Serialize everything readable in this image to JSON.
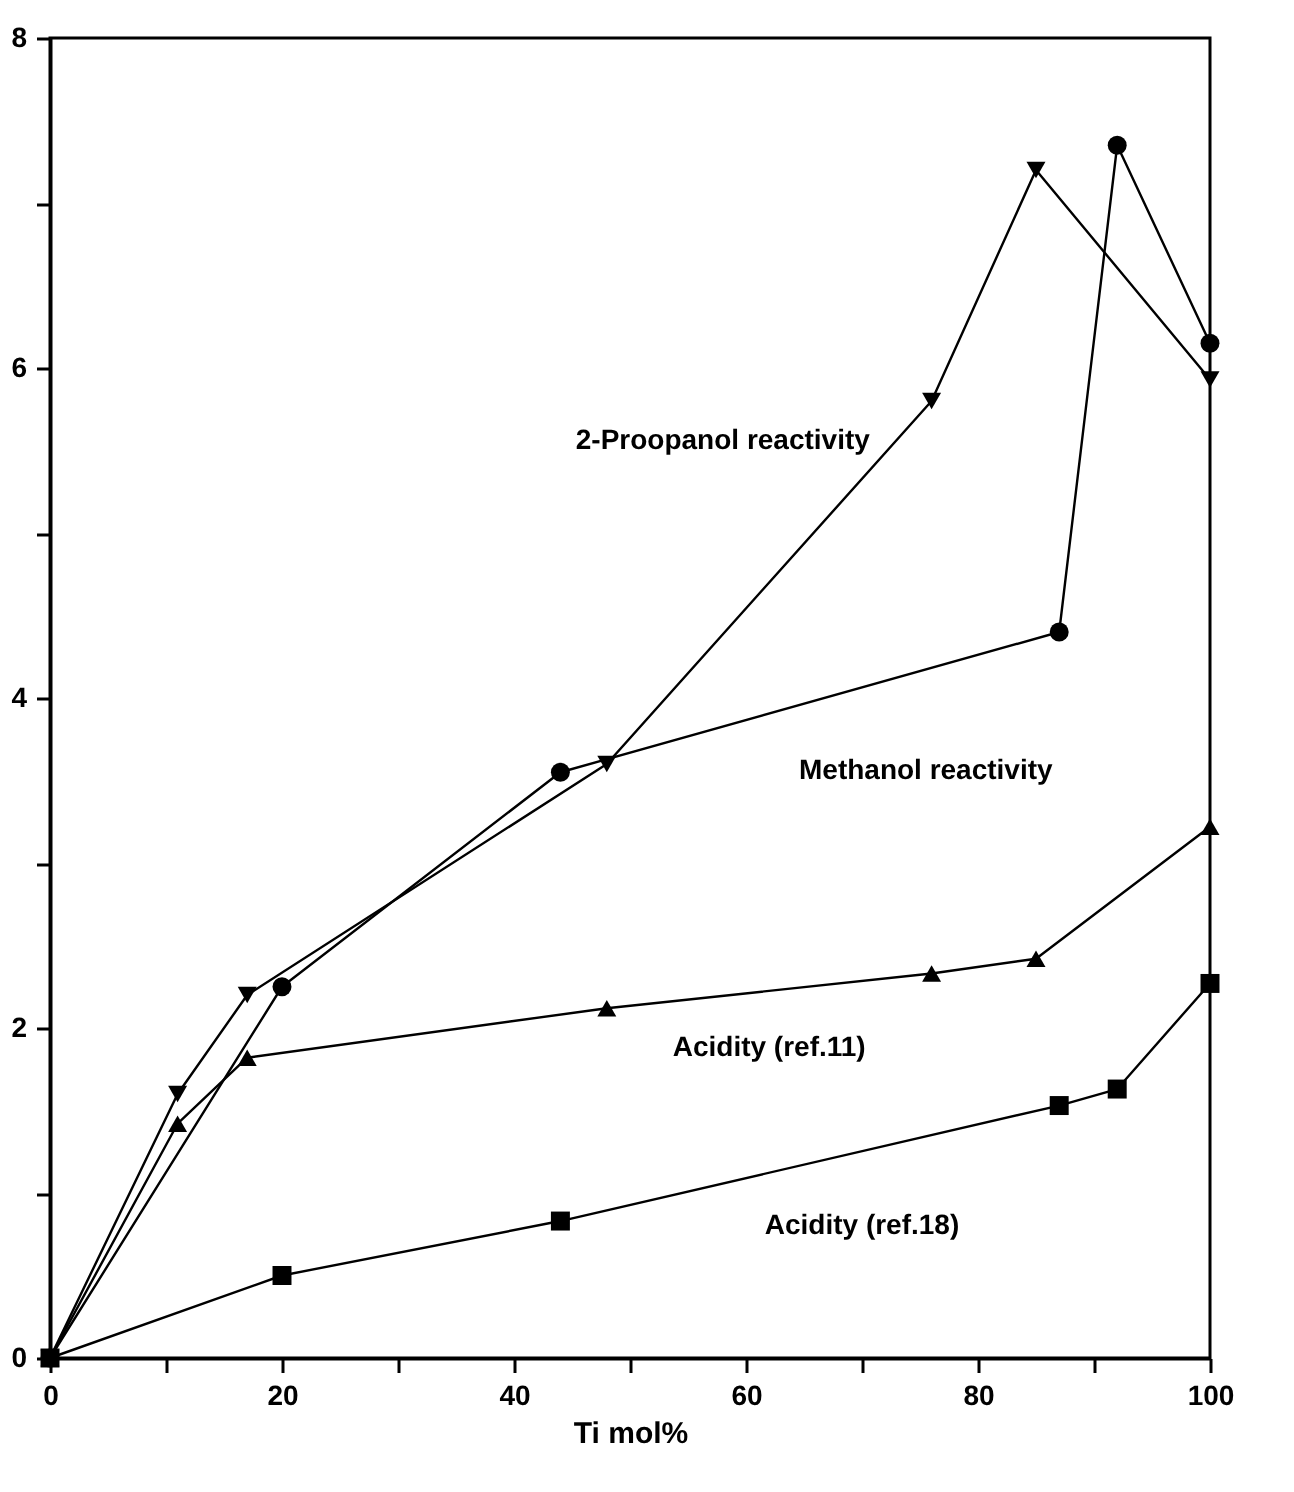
{
  "chart_data": {
    "type": "line",
    "xlabel": "Ti mol%",
    "xlim": [
      0,
      100
    ],
    "ylim": [
      0,
      8
    ],
    "xticks": [
      0,
      {
        "value": 10,
        "label": null
      },
      20,
      {
        "value": 30,
        "label": null
      },
      40,
      {
        "value": 50,
        "label": null
      },
      60,
      {
        "value": 70,
        "label": null
      },
      80,
      {
        "value": 90,
        "label": null
      },
      100
    ],
    "yticks": [
      0,
      {
        "value": 1,
        "label": null
      },
      2,
      {
        "value": 3,
        "label": null
      },
      4,
      {
        "value": 5,
        "label": null
      },
      6,
      {
        "value": 7,
        "label": null
      },
      8
    ],
    "grid": false,
    "line_style": "solid",
    "series": [
      {
        "name": "Methanol reactivity",
        "color": "#000000",
        "marker": "circle",
        "x": [
          0,
          20,
          44,
          87,
          92,
          100
        ],
        "values": [
          0,
          2.25,
          3.55,
          4.4,
          7.35,
          6.15
        ]
      },
      {
        "name": "2-Proopanol reactivity",
        "color": "#000000",
        "marker": "triangle-down",
        "x": [
          0,
          11,
          17,
          48,
          76,
          85,
          100
        ],
        "values": [
          0,
          1.6,
          2.2,
          3.6,
          5.8,
          7.2,
          5.93
        ]
      },
      {
        "name": "Acidity (ref.11)",
        "color": "#000000",
        "marker": "triangle",
        "x": [
          0,
          11,
          17,
          48,
          76,
          85,
          100
        ],
        "values": [
          0,
          1.42,
          1.82,
          2.12,
          2.33,
          2.42,
          3.22
        ]
      },
      {
        "name": "Acidity (ref.18)",
        "color": "#000000",
        "marker": "square",
        "x": [
          0,
          20,
          44,
          87,
          92,
          100
        ],
        "values": [
          0,
          0.5,
          0.83,
          1.53,
          1.63,
          2.27
        ]
      }
    ]
  }
}
